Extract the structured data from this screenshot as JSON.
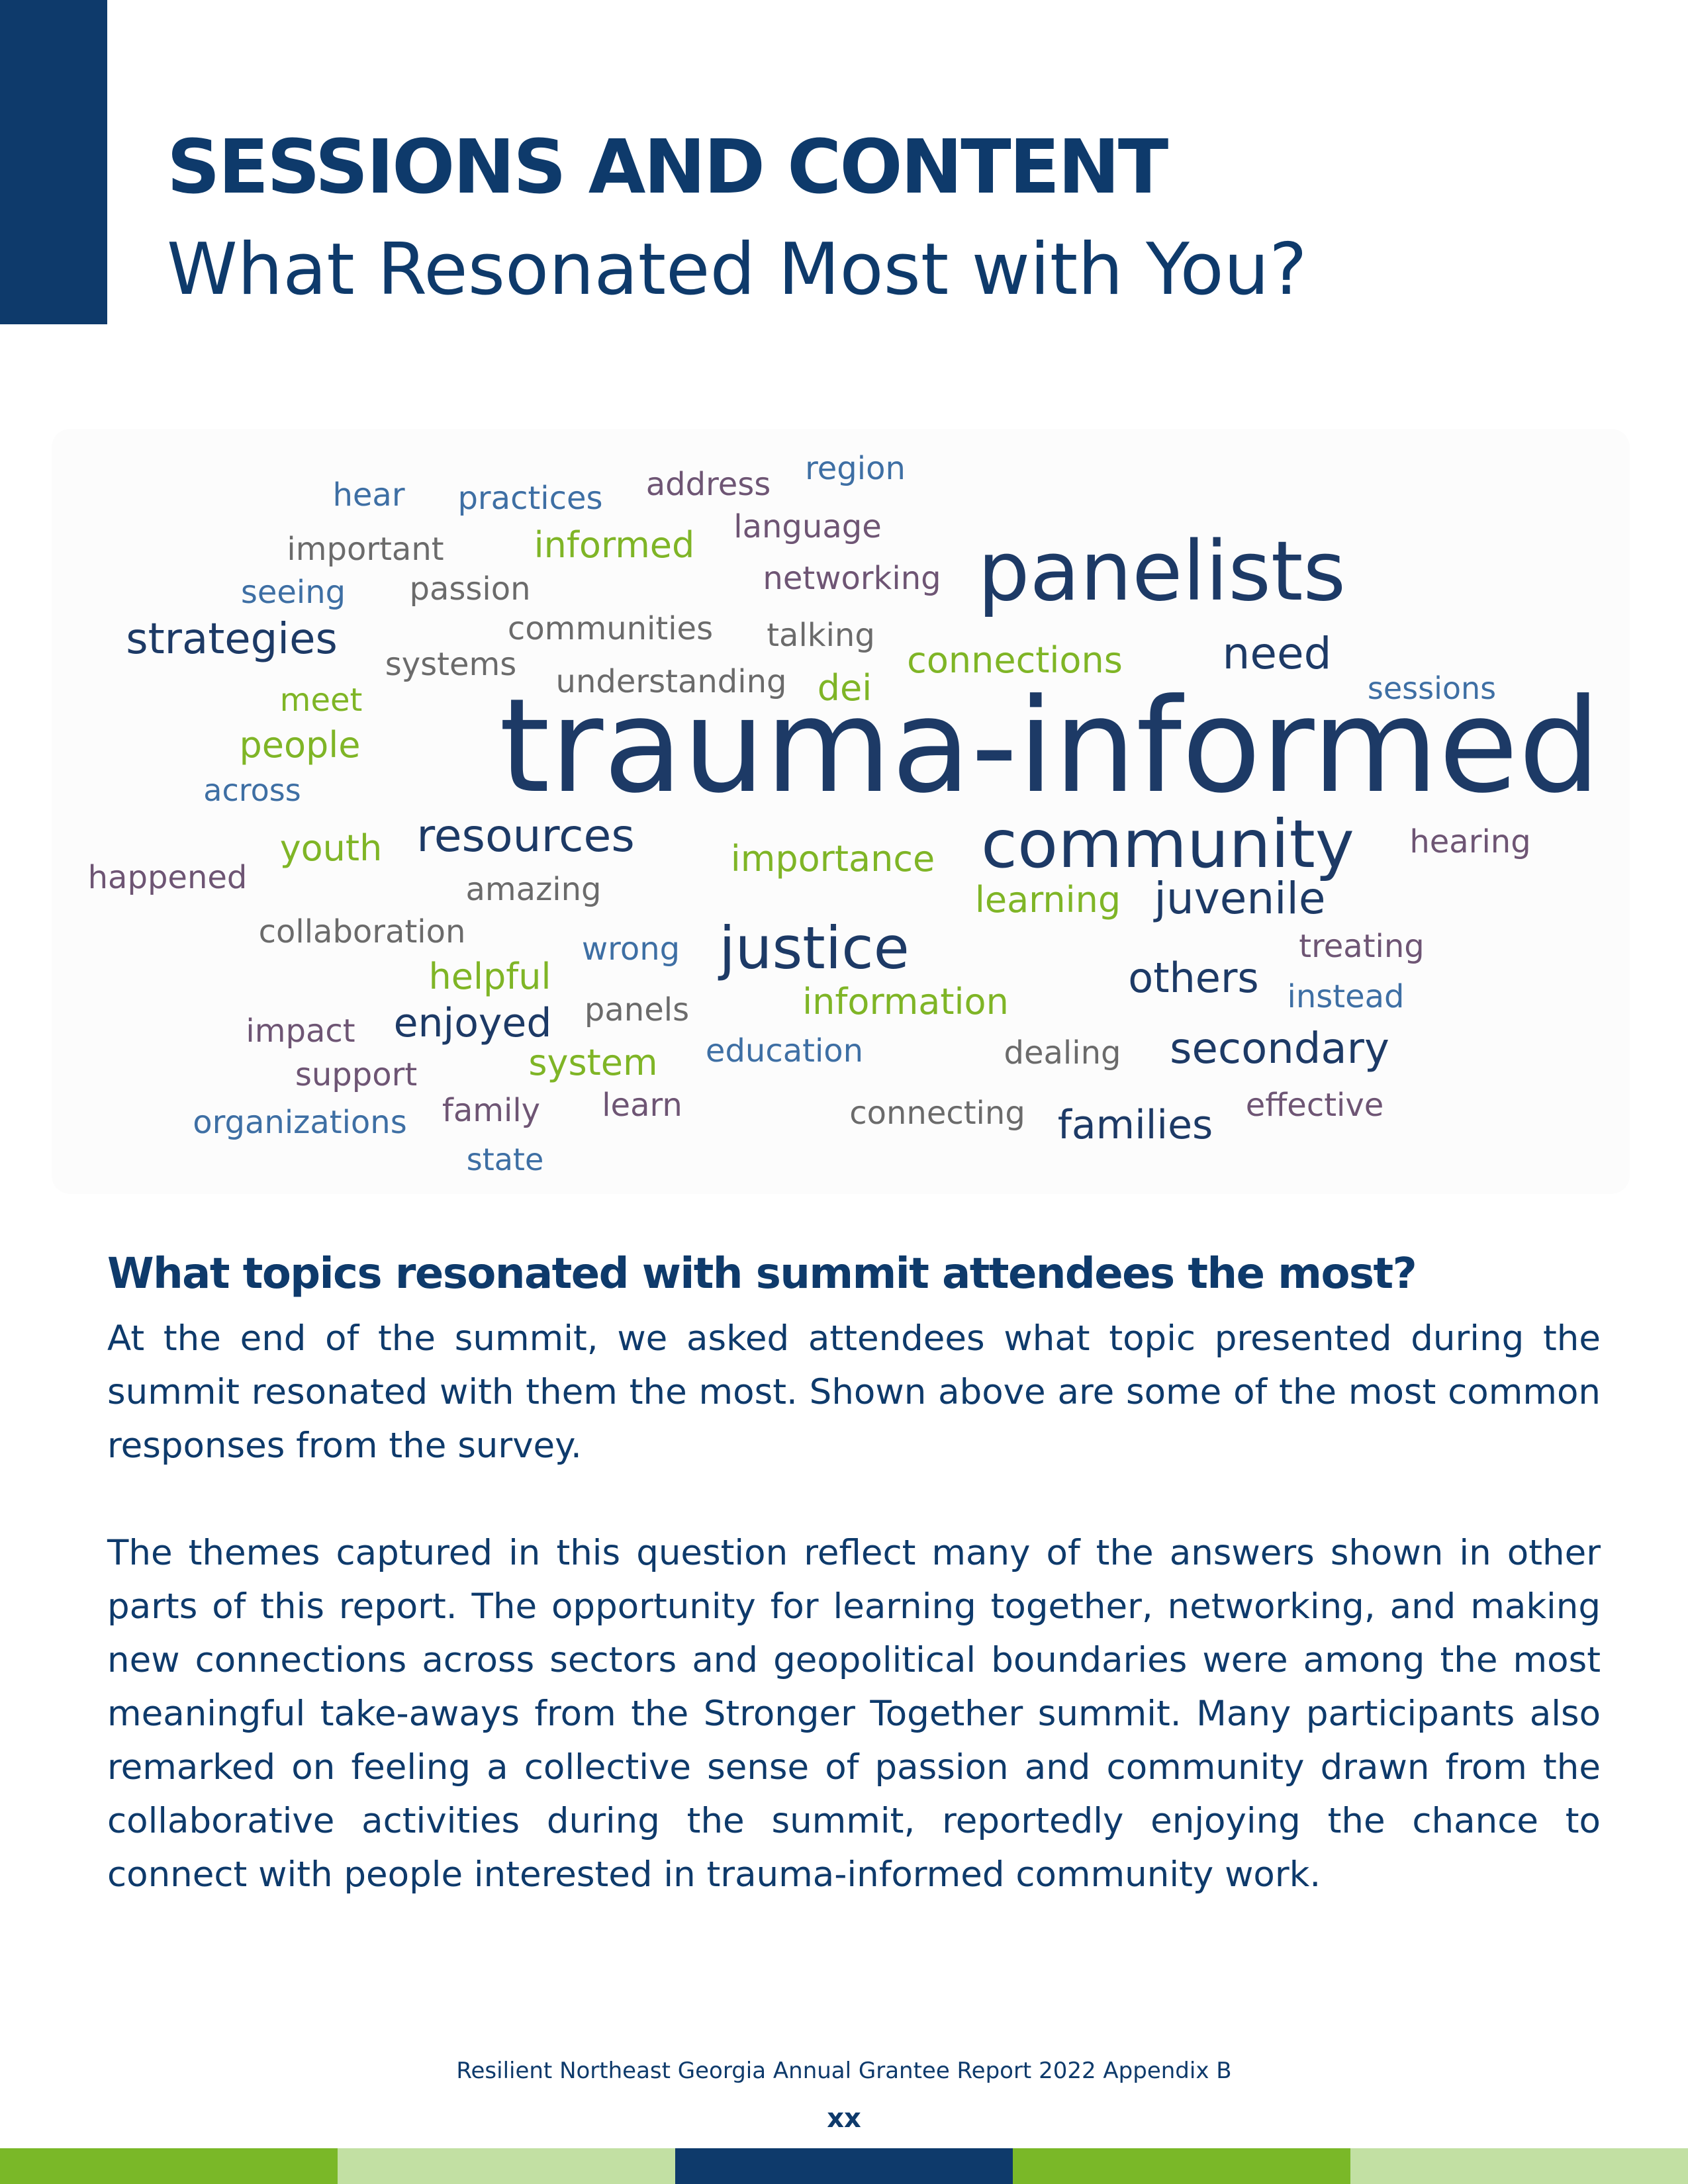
{
  "header": {
    "title": "SESSIONS AND CONTENT",
    "subtitle": "What Resonated Most with You?"
  },
  "word_cloud": {
    "colors": {
      "navy": "#1d3a66",
      "blue": "#3e6fa4",
      "purple": "#6e5574",
      "gray": "#6b6b6b",
      "green": "#7fb526"
    },
    "words": [
      "trauma-informed",
      "panelists",
      "community",
      "justice",
      "strategies",
      "resources",
      "need",
      "juvenile",
      "secondary",
      "others",
      "families",
      "enjoyed",
      "connections",
      "informed",
      "people",
      "youth",
      "importance",
      "learning",
      "helpful",
      "information",
      "system",
      "dei",
      "meet",
      "hear",
      "practices",
      "address",
      "region",
      "important",
      "language",
      "seeing",
      "passion",
      "networking",
      "communities",
      "talking",
      "systems",
      "understanding",
      "sessions",
      "across",
      "hearing",
      "happened",
      "amazing",
      "collaboration",
      "wrong",
      "treating",
      "instead",
      "impact",
      "panels",
      "education",
      "dealing",
      "support",
      "organizations",
      "family",
      "learn",
      "connecting",
      "effective",
      "state"
    ]
  },
  "section": {
    "heading": "What topics resonated with summit attendees the most?",
    "paragraph1": "At the end of the summit, we asked attendees what topic presented during the summit resonated with them the most. Shown above are some of the most common responses from the survey.",
    "paragraph2": "The themes captured in this question reflect many of the answers shown in other parts of this report. The opportunity for learning together, networking, and making new connections across sectors and geopolitical boundaries were among the most meaningful take-aways from the Stronger Together summit.  Many participants also remarked on feeling a collective sense of passion and community drawn from the collaborative activities during the summit, reportedly enjoying the chance to connect with people interested in trauma-informed community work."
  },
  "footer": {
    "text": "Resilient Northeast Georgia Annual Grantee Report 2022 Appendix B",
    "page_number": "xx",
    "bar_colors": [
      "#7ab828",
      "#c2e0a3",
      "#0e3a6b",
      "#7ab828",
      "#c2e0a3"
    ]
  }
}
